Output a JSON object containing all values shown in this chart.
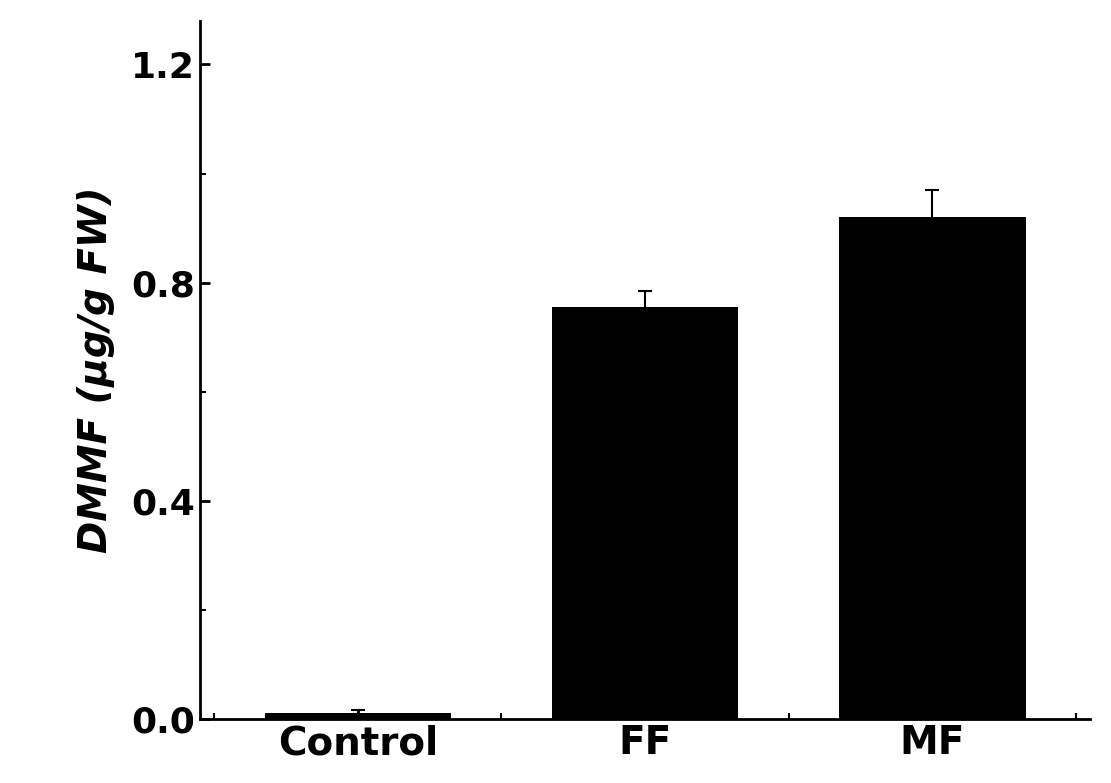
{
  "categories": [
    "Control",
    "FF",
    "MF"
  ],
  "values": [
    0.012,
    0.755,
    0.92
  ],
  "errors": [
    0.005,
    0.03,
    0.05
  ],
  "bar_color": "#000000",
  "background_color": "#ffffff",
  "ylabel": "DMMF (μg/g FW)",
  "ylim": [
    0,
    1.28
  ],
  "yticks": [
    0.0,
    0.4,
    0.8,
    1.2
  ],
  "bar_width": 0.65,
  "xlabel_fontsize": 28,
  "ylabel_fontsize": 28,
  "tick_fontsize": 26,
  "error_capsize": 5,
  "error_linewidth": 1.5,
  "spine_linewidth": 2.0
}
